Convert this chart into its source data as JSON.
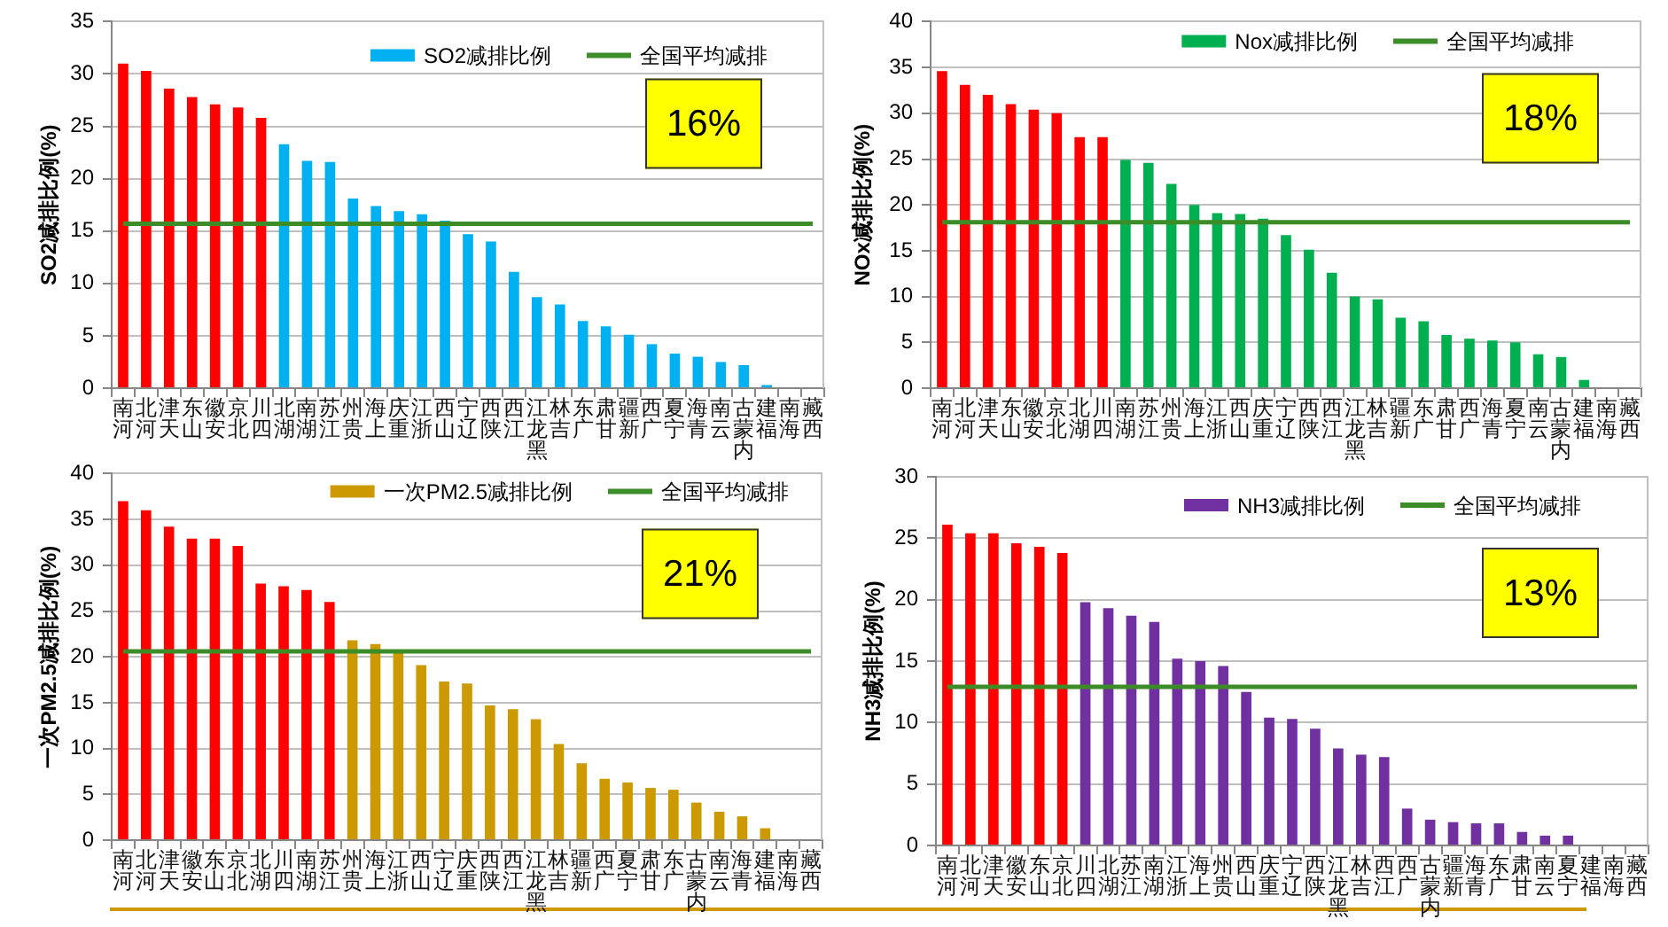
{
  "chart_data": [
    {
      "type": "bar",
      "categories": [
        "河南",
        "河北",
        "天津",
        "山东",
        "安徽",
        "北京",
        "四川",
        "湖北",
        "湖南",
        "江苏",
        "贵州",
        "上海",
        "重庆",
        "浙江",
        "山西",
        "辽宁",
        "陕西",
        "江西",
        "黑龙江",
        "吉林",
        "广东",
        "甘肃",
        "新疆",
        "广西",
        "宁夏",
        "青海",
        "云南",
        "内蒙古",
        "福建",
        "海南",
        "西藏"
      ],
      "series": [
        {
          "name": "SO2减排比例",
          "color": "#00b0f0",
          "colors": [
            "#ff0000",
            "#ff0000",
            "#ff0000",
            "#ff0000",
            "#ff0000",
            "#ff0000",
            "#ff0000",
            "#00b0f0",
            "#00b0f0",
            "#00b0f0",
            "#00b0f0",
            "#00b0f0",
            "#00b0f0",
            "#00b0f0",
            "#00b0f0",
            "#00b0f0",
            "#00b0f0",
            "#00b0f0",
            "#00b0f0",
            "#00b0f0",
            "#00b0f0",
            "#00b0f0",
            "#00b0f0",
            "#00b0f0",
            "#00b0f0",
            "#00b0f0",
            "#00b0f0",
            "#00b0f0",
            "#00b0f0",
            "#00b0f0",
            "#00b0f0"
          ],
          "values": [
            31.0,
            30.3,
            28.6,
            27.8,
            27.1,
            26.8,
            25.8,
            23.3,
            21.7,
            21.6,
            18.1,
            17.4,
            16.9,
            16.6,
            16.0,
            14.7,
            14.0,
            11.1,
            8.7,
            8.0,
            6.4,
            5.9,
            5.1,
            4.2,
            3.3,
            3.0,
            2.5,
            2.2,
            0.3,
            null,
            null
          ]
        }
      ],
      "ylabel": "SO2减排比例(%)",
      "ylim": [
        0,
        35
      ],
      "yticks": [
        0,
        5,
        10,
        15,
        20,
        25,
        30,
        35
      ],
      "grid": "y",
      "legend": "top right",
      "ref_lines": [
        {
          "axis": "y",
          "value": 15.7,
          "label": "全国平均减排",
          "color": "#3c8c28"
        }
      ],
      "annotations": [
        "16%"
      ]
    },
    {
      "type": "bar",
      "categories": [
        "河南",
        "河北",
        "天津",
        "山东",
        "安徽",
        "北京",
        "湖北",
        "四川",
        "湖南",
        "江苏",
        "贵州",
        "上海",
        "浙江",
        "山西",
        "重庆",
        "辽宁",
        "陕西",
        "江西",
        "黑龙江",
        "吉林",
        "新疆",
        "广东",
        "甘肃",
        "广西",
        "青海",
        "宁夏",
        "云南",
        "内蒙古",
        "福建",
        "海南",
        "西藏"
      ],
      "series": [
        {
          "name": "Nox减排比例",
          "color": "#00b050",
          "colors": [
            "#ff0000",
            "#ff0000",
            "#ff0000",
            "#ff0000",
            "#ff0000",
            "#ff0000",
            "#ff0000",
            "#ff0000",
            "#00b050",
            "#00b050",
            "#00b050",
            "#00b050",
            "#00b050",
            "#00b050",
            "#00b050",
            "#00b050",
            "#00b050",
            "#00b050",
            "#00b050",
            "#00b050",
            "#00b050",
            "#00b050",
            "#00b050",
            "#00b050",
            "#00b050",
            "#00b050",
            "#00b050",
            "#00b050",
            "#00b050",
            "#00b050",
            "#00b050"
          ],
          "values": [
            34.6,
            33.1,
            32.0,
            31.0,
            30.4,
            30.0,
            27.4,
            27.4,
            24.9,
            24.6,
            22.3,
            20.0,
            19.1,
            19.0,
            18.5,
            16.7,
            15.1,
            12.6,
            10.0,
            9.7,
            7.7,
            7.3,
            5.8,
            5.4,
            5.2,
            5.0,
            3.7,
            3.4,
            0.9,
            null,
            null
          ]
        }
      ],
      "ylabel": "NOx减排比例(%)",
      "ylim": [
        0,
        40
      ],
      "yticks": [
        0,
        5,
        10,
        15,
        20,
        25,
        30,
        35,
        40
      ],
      "grid": "y",
      "legend": "top right",
      "ref_lines": [
        {
          "axis": "y",
          "value": 18.1,
          "label": "全国平均减排",
          "color": "#3c8c28"
        }
      ],
      "annotations": [
        "18%"
      ]
    },
    {
      "type": "bar",
      "categories": [
        "河南",
        "河北",
        "天津",
        "安徽",
        "山东",
        "北京",
        "湖北",
        "四川",
        "湖南",
        "江苏",
        "贵州",
        "上海",
        "浙江",
        "山西",
        "辽宁",
        "重庆",
        "陕西",
        "江西",
        "黑龙江",
        "吉林",
        "新疆",
        "广西",
        "宁夏",
        "甘肃",
        "广东",
        "内蒙古",
        "云南",
        "青海",
        "福建",
        "海南",
        "西藏"
      ],
      "series": [
        {
          "name": "一次PM2.5减排比例",
          "color": "#cc9900",
          "colors": [
            "#ff0000",
            "#ff0000",
            "#ff0000",
            "#ff0000",
            "#ff0000",
            "#ff0000",
            "#ff0000",
            "#ff0000",
            "#ff0000",
            "#ff0000",
            "#cc9900",
            "#cc9900",
            "#cc9900",
            "#cc9900",
            "#cc9900",
            "#cc9900",
            "#cc9900",
            "#cc9900",
            "#cc9900",
            "#cc9900",
            "#cc9900",
            "#cc9900",
            "#cc9900",
            "#cc9900",
            "#cc9900",
            "#cc9900",
            "#cc9900",
            "#cc9900",
            "#cc9900",
            "#cc9900",
            "#cc9900"
          ],
          "values": [
            37.0,
            36.0,
            34.2,
            32.9,
            32.9,
            32.1,
            28.0,
            27.7,
            27.3,
            26.0,
            21.8,
            21.4,
            20.7,
            19.1,
            17.3,
            17.1,
            14.7,
            14.3,
            13.2,
            10.5,
            8.4,
            6.7,
            6.3,
            5.7,
            5.5,
            4.1,
            3.1,
            2.6,
            1.3,
            null,
            null
          ]
        }
      ],
      "ylabel": "一次PM2.5减排比例(%)",
      "ylim": [
        0,
        40
      ],
      "yticks": [
        0,
        5,
        10,
        15,
        20,
        25,
        30,
        35,
        40
      ],
      "grid": "y",
      "legend": "top right",
      "ref_lines": [
        {
          "axis": "y",
          "value": 20.6,
          "label": "全国平均减排",
          "color": "#3c8c28"
        }
      ],
      "annotations": [
        "21%"
      ]
    },
    {
      "type": "bar",
      "categories": [
        "河南",
        "河北",
        "天津",
        "安徽",
        "山东",
        "北京",
        "四川",
        "湖北",
        "江苏",
        "湖南",
        "浙江",
        "上海",
        "贵州",
        "山西",
        "重庆",
        "辽宁",
        "陕西",
        "黑龙江",
        "吉林",
        "江西",
        "广西",
        "内蒙古",
        "新疆",
        "青海",
        "广东",
        "甘肃",
        "云南",
        "宁夏",
        "福建",
        "海南",
        "西藏"
      ],
      "series": [
        {
          "name": "NH3减排比例",
          "color": "#7030a0",
          "colors": [
            "#ff0000",
            "#ff0000",
            "#ff0000",
            "#ff0000",
            "#ff0000",
            "#ff0000",
            "#7030a0",
            "#7030a0",
            "#7030a0",
            "#7030a0",
            "#7030a0",
            "#7030a0",
            "#7030a0",
            "#7030a0",
            "#7030a0",
            "#7030a0",
            "#7030a0",
            "#7030a0",
            "#7030a0",
            "#7030a0",
            "#7030a0",
            "#7030a0",
            "#7030a0",
            "#7030a0",
            "#7030a0",
            "#7030a0",
            "#7030a0",
            "#7030a0",
            "#7030a0",
            "#7030a0",
            "#7030a0"
          ],
          "values": [
            26.1,
            25.4,
            25.4,
            24.6,
            24.3,
            23.8,
            19.8,
            19.3,
            18.7,
            18.2,
            15.2,
            15.0,
            14.6,
            12.5,
            10.4,
            10.3,
            9.5,
            7.9,
            7.4,
            7.2,
            3.0,
            2.1,
            1.9,
            1.8,
            1.8,
            1.1,
            0.8,
            0.8,
            null,
            null,
            null
          ]
        }
      ],
      "ylabel": "NH3减排比例(%)",
      "ylim": [
        0,
        30
      ],
      "yticks": [
        0,
        5,
        10,
        15,
        20,
        25,
        30
      ],
      "grid": "y",
      "legend": "top right",
      "ref_lines": [
        {
          "axis": "y",
          "value": 12.9,
          "label": "全国平均减排",
          "color": "#3c8c28"
        }
      ],
      "annotations": [
        "13%"
      ]
    }
  ]
}
